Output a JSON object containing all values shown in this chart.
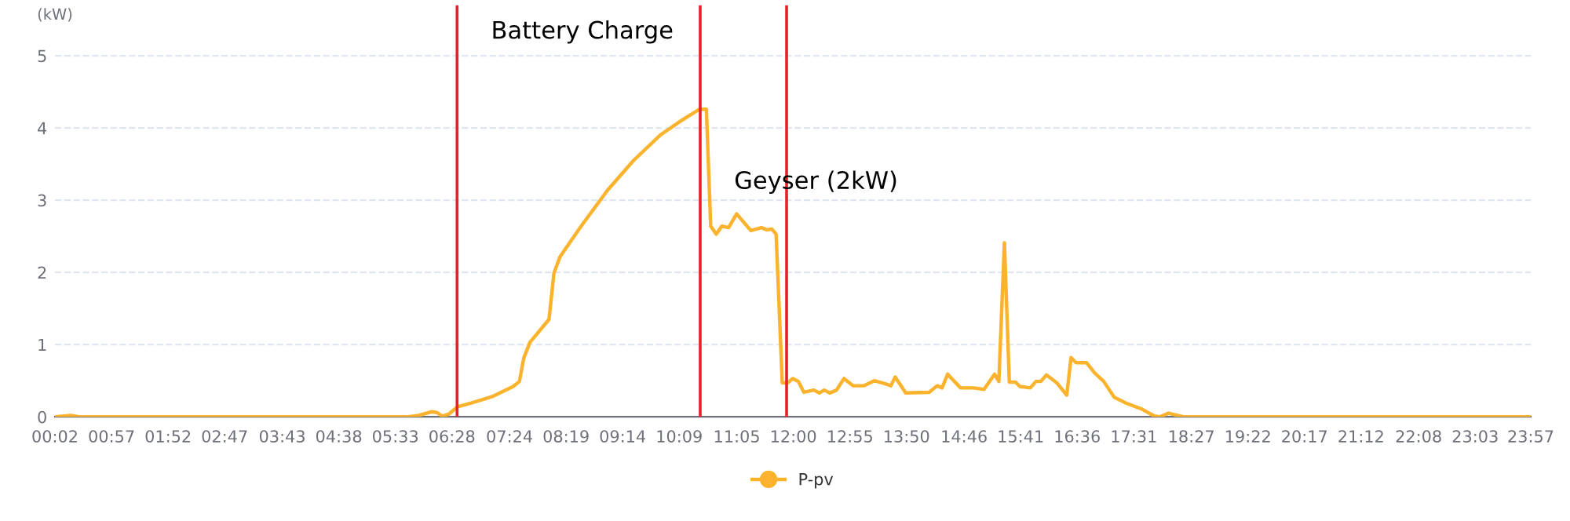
{
  "chart_data": {
    "type": "line",
    "ylabel": "(kW)",
    "xlim": [
      0.033,
      23.95
    ],
    "ylim": [
      0,
      5.7
    ],
    "xticks": [
      {
        "value": 0.033,
        "label": "00:02"
      },
      {
        "value": 0.95,
        "label": "00:57"
      },
      {
        "value": 1.867,
        "label": "01:52"
      },
      {
        "value": 2.783,
        "label": "02:47"
      },
      {
        "value": 3.717,
        "label": "03:43"
      },
      {
        "value": 4.633,
        "label": "04:38"
      },
      {
        "value": 5.55,
        "label": "05:33"
      },
      {
        "value": 6.467,
        "label": "06:28"
      },
      {
        "value": 7.4,
        "label": "07:24"
      },
      {
        "value": 8.317,
        "label": "08:19"
      },
      {
        "value": 9.233,
        "label": "09:14"
      },
      {
        "value": 10.15,
        "label": "10:09"
      },
      {
        "value": 11.083,
        "label": "11:05"
      },
      {
        "value": 12,
        "label": "12:00"
      },
      {
        "value": 12.917,
        "label": "12:55"
      },
      {
        "value": 13.833,
        "label": "13:50"
      },
      {
        "value": 14.767,
        "label": "14:46"
      },
      {
        "value": 15.683,
        "label": "15:41"
      },
      {
        "value": 16.6,
        "label": "16:36"
      },
      {
        "value": 17.517,
        "label": "17:31"
      },
      {
        "value": 18.45,
        "label": "18:27"
      },
      {
        "value": 19.367,
        "label": "19:22"
      },
      {
        "value": 20.283,
        "label": "20:17"
      },
      {
        "value": 21.2,
        "label": "21:12"
      },
      {
        "value": 22.133,
        "label": "22:08"
      },
      {
        "value": 23.05,
        "label": "23:03"
      },
      {
        "value": 23.95,
        "label": "23:57"
      }
    ],
    "yticks": [
      0,
      1,
      2,
      3,
      4,
      5
    ],
    "grid": "y",
    "legend": "bottom",
    "line_style": "solid",
    "series": [
      {
        "name": "P-pv",
        "color": "#fbb32d",
        "x": [
          0.033,
          0.29,
          0.42,
          5.76,
          5.93,
          6.14,
          6.22,
          6.31,
          6.42,
          6.56,
          6.78,
          7.12,
          7.46,
          7.56,
          7.63,
          7.73,
          8.04,
          8.12,
          8.22,
          8.56,
          8.99,
          9.41,
          9.84,
          10.18,
          10.48,
          10.59,
          10.66,
          10.75,
          10.84,
          10.95,
          11.08,
          11.31,
          11.48,
          11.57,
          11.65,
          11.72,
          11.82,
          11.91,
          11.99,
          12.08,
          12.17,
          12.33,
          12.42,
          12.5,
          12.59,
          12.7,
          12.82,
          12.97,
          13.14,
          13.31,
          13.48,
          13.58,
          13.65,
          13.82,
          14.2,
          14.33,
          14.41,
          14.5,
          14.71,
          14.92,
          15.09,
          15.26,
          15.33,
          15.42,
          15.5,
          15.6,
          15.67,
          15.84,
          15.93,
          16.01,
          16.1,
          16.27,
          16.43,
          16.5,
          16.58,
          16.75,
          16.88,
          17.03,
          17.2,
          17.39,
          17.64,
          17.85,
          17.94,
          18.08,
          18.32,
          23.95
        ],
        "values": [
          0,
          0.02,
          0,
          0,
          0.02,
          0.07,
          0.06,
          0.01,
          0.04,
          0.14,
          0.19,
          0.28,
          0.42,
          0.49,
          0.81,
          1.03,
          1.35,
          1.99,
          2.22,
          2.64,
          3.14,
          3.55,
          3.9,
          4.1,
          4.26,
          4.26,
          2.64,
          2.53,
          2.64,
          2.62,
          2.81,
          2.58,
          2.62,
          2.59,
          2.6,
          2.53,
          0.47,
          0.47,
          0.53,
          0.49,
          0.34,
          0.37,
          0.33,
          0.37,
          0.33,
          0.37,
          0.53,
          0.43,
          0.43,
          0.5,
          0.46,
          0.43,
          0.55,
          0.33,
          0.34,
          0.43,
          0.4,
          0.59,
          0.4,
          0.4,
          0.38,
          0.59,
          0.49,
          2.41,
          0.48,
          0.48,
          0.42,
          0.4,
          0.49,
          0.49,
          0.58,
          0.47,
          0.3,
          0.82,
          0.75,
          0.75,
          0.61,
          0.49,
          0.27,
          0.19,
          0.11,
          0.01,
          0,
          0.05,
          0,
          0
        ]
      }
    ],
    "ref_lines": [
      {
        "axis": "x",
        "value": 6.55,
        "color": "#e8202a"
      },
      {
        "axis": "x",
        "value": 10.49,
        "color": "#e8202a"
      },
      {
        "axis": "x",
        "value": 11.89,
        "color": "#e8202a"
      }
    ],
    "annotations": [
      "Battery Charge",
      "Geyser (2kW)"
    ]
  }
}
